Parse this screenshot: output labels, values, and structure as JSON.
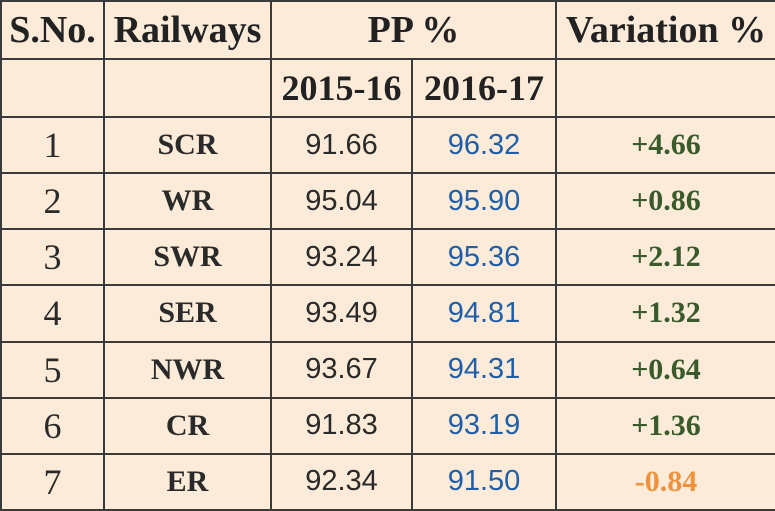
{
  "colors": {
    "background": "#fcebd9",
    "border": "#3a3a3a",
    "text": "#2a2a2a",
    "value_2016_17": "#1f5fa8",
    "variation_positive": "#3b5a2c",
    "variation_negative": "#f0923c"
  },
  "table": {
    "headers": {
      "sno": "S.No.",
      "railways": "Railways",
      "pp": "PP %",
      "variation": "Variation %",
      "year1": "2015-16",
      "year2": "2016-17"
    },
    "rows": [
      {
        "sno": "1",
        "railway": "SCR",
        "y1": "91.66",
        "y2": "96.32",
        "variation": "+4.66",
        "trend": "positive"
      },
      {
        "sno": "2",
        "railway": "WR",
        "y1": "95.04",
        "y2": "95.90",
        "variation": "+0.86",
        "trend": "positive"
      },
      {
        "sno": "3",
        "railway": "SWR",
        "y1": "93.24",
        "y2": "95.36",
        "variation": "+2.12",
        "trend": "positive"
      },
      {
        "sno": "4",
        "railway": "SER",
        "y1": "93.49",
        "y2": "94.81",
        "variation": "+1.32",
        "trend": "positive"
      },
      {
        "sno": "5",
        "railway": "NWR",
        "y1": "93.67",
        "y2": "94.31",
        "variation": "+0.64",
        "trend": "positive"
      },
      {
        "sno": "6",
        "railway": "CR",
        "y1": "91.83",
        "y2": "93.19",
        "variation": "+1.36",
        "trend": "positive"
      },
      {
        "sno": "7",
        "railway": "ER",
        "y1": "92.34",
        "y2": "91.50",
        "variation": "-0.84",
        "trend": "negative"
      }
    ]
  }
}
